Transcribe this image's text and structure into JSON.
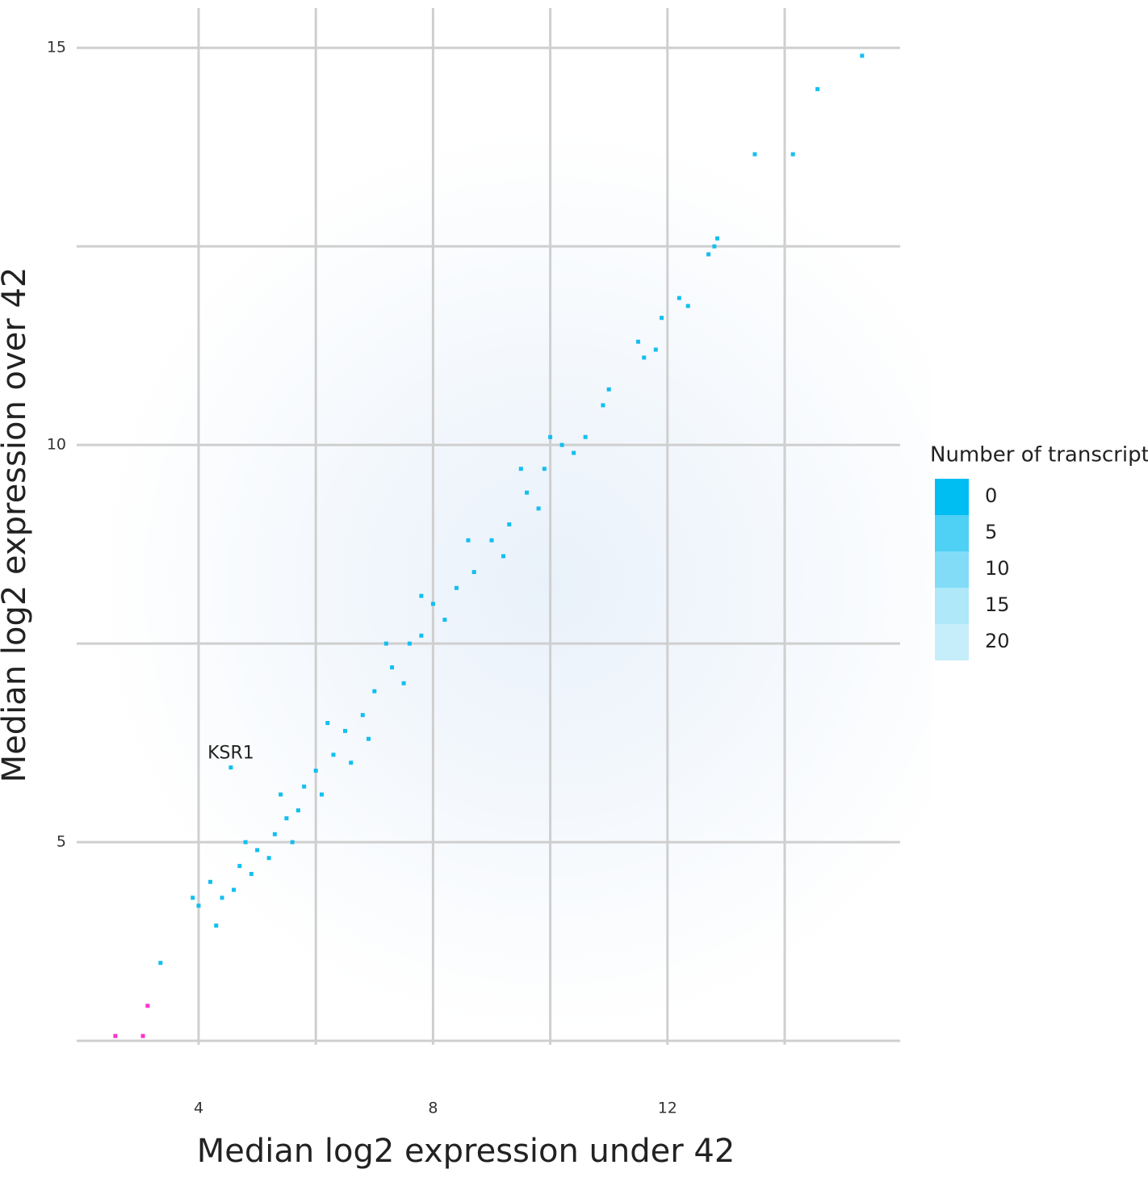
{
  "chart_data": {
    "type": "scatter",
    "xlabel": "Median log2 expression under 42",
    "ylabel": "Median log2 expression over 42",
    "xlim": [
      1.92,
      15.97
    ],
    "ylim": [
      2.45,
      15.5
    ],
    "xticks": [
      4,
      8,
      12
    ],
    "yticks": [
      5,
      10,
      15
    ],
    "x_minor_grid": [
      6,
      10,
      14
    ],
    "y_minor_grid": [
      2.5,
      7.5,
      12.5
    ],
    "grid": true,
    "series": [
      {
        "color": "#12bff0",
        "x": [
          15.32,
          14.56,
          13.49,
          14.14,
          12.8,
          12.7,
          12.85,
          12.2,
          12.35,
          11.9,
          11.5,
          11.6,
          11.8,
          11.0,
          10.6,
          10.9,
          10.2,
          10.4,
          9.9,
          9.6,
          9.8,
          9.3,
          9.0,
          9.2,
          8.7,
          8.4,
          8.0,
          8.2,
          7.8,
          7.6,
          7.3,
          7.5,
          7.0,
          6.8,
          6.9,
          6.5,
          6.3,
          6.6,
          6.0,
          6.1,
          5.8,
          5.7,
          5.5,
          5.3,
          5.6,
          5.2,
          5.0,
          4.9,
          4.7,
          4.6,
          4.4,
          4.2,
          4.0,
          3.9,
          4.3,
          4.8,
          5.4,
          6.2,
          7.2,
          7.8,
          8.6,
          9.5,
          10.0,
          4.55,
          3.35
        ],
        "values": [
          14.9,
          14.48,
          13.66,
          13.66,
          12.5,
          12.4,
          12.6,
          11.85,
          11.75,
          11.6,
          11.3,
          11.1,
          11.2,
          10.7,
          10.1,
          10.5,
          10.0,
          9.9,
          9.7,
          9.4,
          9.2,
          9.0,
          8.8,
          8.6,
          8.4,
          8.2,
          8.0,
          7.8,
          7.6,
          7.5,
          7.2,
          7.0,
          6.9,
          6.6,
          6.3,
          6.4,
          6.1,
          6.0,
          5.9,
          5.6,
          5.7,
          5.4,
          5.3,
          5.1,
          5.0,
          4.8,
          4.9,
          4.6,
          4.7,
          4.4,
          4.3,
          4.5,
          4.2,
          4.3,
          3.95,
          5.0,
          5.6,
          6.5,
          7.5,
          8.1,
          8.8,
          9.7,
          10.1,
          5.94,
          3.48
        ]
      },
      {
        "color": "#ff33cc",
        "x": [
          2.58,
          3.05,
          3.13
        ],
        "values": [
          2.56,
          2.56,
          2.94
        ]
      }
    ],
    "annotations": [
      {
        "text": "KSR1",
        "x": 4.55,
        "y": 5.94
      }
    ],
    "legend": {
      "title": "Number of transcripts",
      "values": [
        0,
        5,
        10,
        15,
        20
      ],
      "colors": [
        "#00bdf2",
        "#4fd0f5",
        "#82dcf7",
        "#aee8f9",
        "#c6eefa"
      ]
    }
  }
}
